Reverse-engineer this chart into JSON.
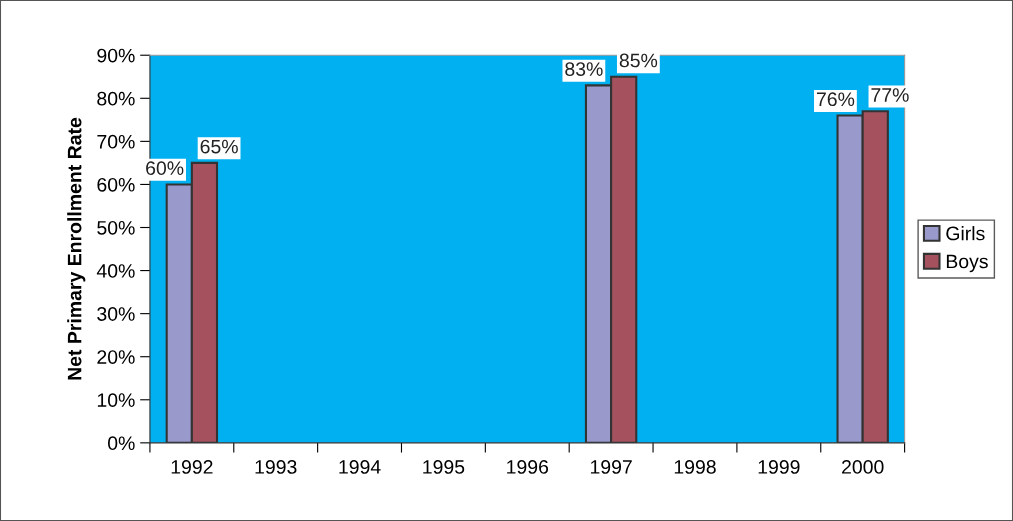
{
  "chart_data": {
    "type": "bar",
    "ylabel": "Net Primary Enrollment Rate",
    "categories": [
      "1992",
      "1993",
      "1994",
      "1995",
      "1996",
      "1997",
      "1998",
      "1999",
      "2000"
    ],
    "series": [
      {
        "name": "Girls",
        "color": "#9999cc",
        "values": [
          60,
          null,
          null,
          null,
          null,
          83,
          null,
          null,
          76
        ],
        "value_labels": [
          "60%",
          null,
          null,
          null,
          null,
          "83%",
          null,
          null,
          "76%"
        ]
      },
      {
        "name": "Boys",
        "color": "#a5525e",
        "values": [
          65,
          null,
          null,
          null,
          null,
          85,
          null,
          null,
          77
        ],
        "value_labels": [
          "65%",
          null,
          null,
          null,
          null,
          "85%",
          null,
          null,
          "77%"
        ]
      }
    ],
    "ylim": [
      0,
      90
    ],
    "yticks": [
      {
        "value": 0,
        "label": "0%"
      },
      {
        "value": 10,
        "label": "10%"
      },
      {
        "value": 20,
        "label": "20%"
      },
      {
        "value": 30,
        "label": "30%"
      },
      {
        "value": 40,
        "label": "40%"
      },
      {
        "value": 50,
        "label": "50%"
      },
      {
        "value": 60,
        "label": "60%"
      },
      {
        "value": 70,
        "label": "70%"
      },
      {
        "value": 80,
        "label": "80%"
      },
      {
        "value": 90,
        "label": "90%"
      }
    ],
    "grid": false,
    "legend": "right"
  }
}
